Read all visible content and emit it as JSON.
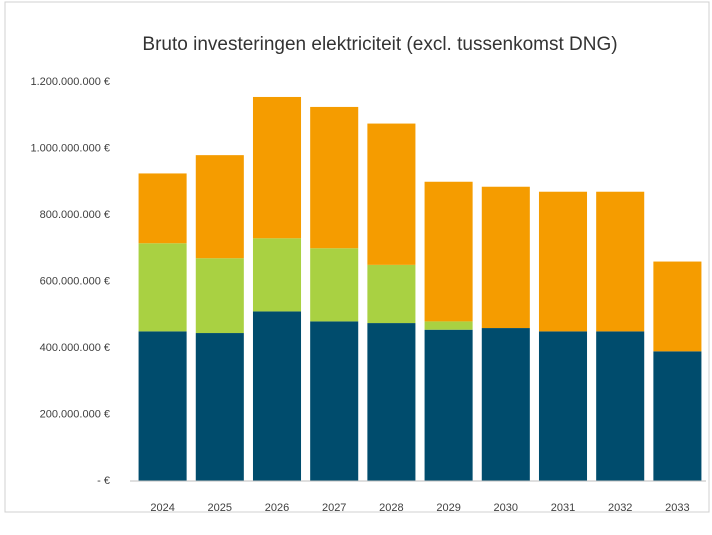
{
  "chart_data": {
    "type": "stacked_bar",
    "title": "Bruto investeringen elektriciteit (excl. tussenkomst DNG)",
    "categories": [
      "2024",
      "2025",
      "2026",
      "2027",
      "2028",
      "2029",
      "2030",
      "2031",
      "2032",
      "2033"
    ],
    "series": [
      {
        "color": "#004c6d",
        "values": [
          450000000,
          445000000,
          510000000,
          480000000,
          475000000,
          455000000,
          460000000,
          450000000,
          450000000,
          390000000
        ]
      },
      {
        "color": "#a9d142",
        "values": [
          265000000,
          225000000,
          220000000,
          220000000,
          175000000,
          25000000,
          0,
          0,
          0,
          0
        ]
      },
      {
        "color": "#f59c00",
        "values": [
          210000000,
          310000000,
          425000000,
          425000000,
          425000000,
          420000000,
          425000000,
          420000000,
          420000000,
          270000000
        ]
      }
    ],
    "ylim": [
      0,
      1200000000
    ],
    "yticks": [
      {
        "value": 0,
        "label": "-   €"
      },
      {
        "value": 200000000,
        "label": "200.000.000 €"
      },
      {
        "value": 400000000,
        "label": "400.000.000 €"
      },
      {
        "value": 600000000,
        "label": "600.000.000 €"
      },
      {
        "value": 800000000,
        "label": "800.000.000 €"
      },
      {
        "value": 1000000000,
        "label": "1.000.000.000 €"
      },
      {
        "value": 1200000000,
        "label": "1.200.000.000 €"
      }
    ],
    "grid": false
  }
}
